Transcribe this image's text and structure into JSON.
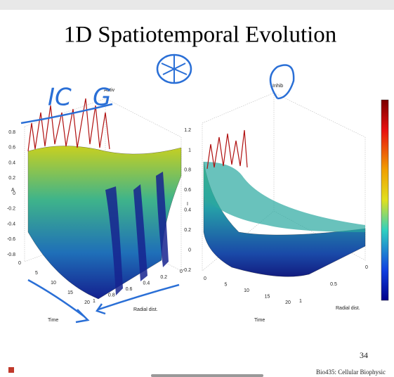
{
  "title": "1D Spatiotemporal Evolution",
  "plots": [
    {
      "title": "Activ",
      "z_label": "A",
      "time_label": "Time",
      "radial_label": "Radial dist.",
      "z_ticks": [
        "0.8",
        "0.6",
        "0.4",
        "0.2",
        "0",
        "-0.2",
        "-0.4",
        "-0.6",
        "-0.8"
      ],
      "time_ticks": [
        "0",
        "5",
        "10",
        "15",
        "20"
      ],
      "radial_ticks": [
        "1",
        "0.8",
        "0.6",
        "0.4",
        "0.2",
        "0"
      ]
    },
    {
      "title": "Inhib",
      "z_label": "I",
      "time_label": "Time",
      "radial_label": "Radial dist.",
      "z_ticks": [
        "1.2",
        "1",
        "0.8",
        "0.6",
        "0.4",
        "0.2",
        "0",
        "-0.2"
      ],
      "time_ticks": [
        "0",
        "5",
        "10",
        "15",
        "20"
      ],
      "radial_ticks": [
        "1",
        "0.5",
        "0"
      ]
    }
  ],
  "annotations": [
    "IC",
    "G"
  ],
  "page_number": "34",
  "footer": "Bio435: Cellular Biophysic"
}
